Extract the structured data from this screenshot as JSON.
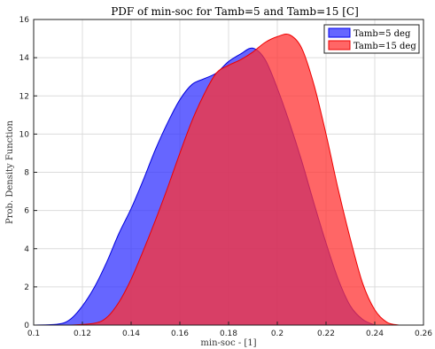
{
  "chart_data": {
    "type": "area",
    "title": "PDF of min-soc for Tamb=5 and Tamb=15 [C]",
    "xlabel": "min-soc - [1]",
    "ylabel": "Prob. Density Function",
    "xlim": [
      0.1,
      0.26
    ],
    "ylim": [
      0,
      16
    ],
    "xticks": [
      0.1,
      0.12,
      0.14,
      0.16,
      0.18,
      0.2,
      0.22,
      0.24,
      0.26
    ],
    "yticks": [
      0,
      2,
      4,
      6,
      8,
      10,
      12,
      14,
      16
    ],
    "xtick_labels": [
      "0.1",
      "0.12",
      "0.14",
      "0.16",
      "0.18",
      "0.2",
      "0.22",
      "0.24",
      "0.26"
    ],
    "ytick_labels": [
      "0",
      "2",
      "4",
      "6",
      "8",
      "10",
      "12",
      "14",
      "16"
    ],
    "grid": true,
    "legend_position": "top-right",
    "series": [
      {
        "name": "Tamb=5 deg",
        "color": "#3333ff",
        "x": [
          0.1,
          0.11,
          0.115,
          0.12,
          0.125,
          0.13,
          0.135,
          0.14,
          0.145,
          0.15,
          0.155,
          0.16,
          0.165,
          0.17,
          0.175,
          0.18,
          0.185,
          0.19,
          0.195,
          0.2,
          0.205,
          0.21,
          0.215,
          0.22,
          0.225,
          0.23,
          0.235,
          0.24
        ],
        "y": [
          0,
          0.05,
          0.3,
          1.0,
          2.0,
          3.3,
          4.8,
          6.1,
          7.6,
          9.2,
          10.6,
          11.8,
          12.6,
          12.9,
          13.2,
          13.8,
          14.2,
          14.5,
          13.9,
          12.4,
          10.6,
          8.6,
          6.4,
          4.3,
          2.4,
          1.0,
          0.3,
          0
        ]
      },
      {
        "name": "Tamb=15 deg",
        "color": "#ff3333",
        "x": [
          0.115,
          0.125,
          0.13,
          0.135,
          0.14,
          0.145,
          0.15,
          0.155,
          0.16,
          0.165,
          0.17,
          0.175,
          0.18,
          0.185,
          0.19,
          0.195,
          0.2,
          0.205,
          0.21,
          0.215,
          0.22,
          0.225,
          0.23,
          0.235,
          0.24,
          0.245,
          0.25
        ],
        "y": [
          0,
          0.1,
          0.4,
          1.2,
          2.4,
          3.9,
          5.5,
          7.2,
          9.0,
          10.7,
          12.1,
          13.2,
          13.6,
          13.9,
          14.3,
          14.8,
          15.1,
          15.2,
          14.5,
          12.6,
          10.0,
          7.1,
          4.5,
          2.2,
          0.8,
          0.15,
          0
        ]
      }
    ]
  }
}
